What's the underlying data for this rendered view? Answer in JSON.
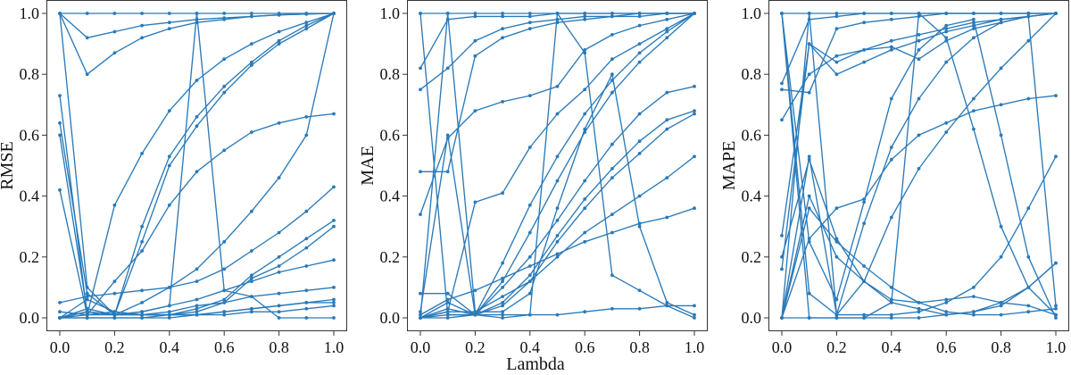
{
  "figure": {
    "shared_xlabel": "Lambda",
    "line_color": "#2a7ab9"
  },
  "chart_data": [
    {
      "type": "line",
      "title": "",
      "xlabel": "",
      "ylabel": "RMSE",
      "xlim": [
        0,
        1
      ],
      "ylim": [
        0,
        1
      ],
      "xticks": [
        0,
        0.2,
        0.4,
        0.6,
        0.8,
        1
      ],
      "xtick_labels": [
        "0.0",
        "0.2",
        "0.4",
        "0.6",
        "0.8",
        "1.0"
      ],
      "yticks": [
        0,
        0.2,
        0.4,
        0.6,
        0.8,
        1
      ],
      "ytick_labels": [
        "0.0",
        "0.2",
        "0.4",
        "0.6",
        "0.8",
        "1.0"
      ],
      "grid": false,
      "x": [
        0,
        0.1,
        0.2,
        0.3,
        0.4,
        0.5,
        0.6,
        0.7,
        0.8,
        0.9,
        1
      ],
      "series": [
        {
          "values": [
            1,
            1,
            1,
            1,
            1,
            1,
            1,
            1,
            1,
            1,
            1
          ]
        },
        {
          "values": [
            1,
            0.8,
            0.87,
            0.92,
            0.95,
            0.97,
            0.98,
            0.99,
            0.995,
            0.998,
            1
          ]
        },
        {
          "values": [
            1,
            0.92,
            0.94,
            0.96,
            0.97,
            0.98,
            0.985,
            0.99,
            0.995,
            0.998,
            1
          ]
        },
        {
          "values": [
            0.73,
            0.01,
            0.37,
            0.54,
            0.68,
            0.78,
            0.85,
            0.9,
            0.94,
            0.97,
            1
          ]
        },
        {
          "values": [
            0.64,
            0.08,
            0.01,
            0.3,
            0.53,
            0.66,
            0.76,
            0.84,
            0.91,
            0.96,
            1
          ]
        },
        {
          "values": [
            0.6,
            0.02,
            0.01,
            0.25,
            0.5,
            0.63,
            0.74,
            0.83,
            0.9,
            0.95,
            1
          ]
        },
        {
          "values": [
            0.42,
            0.01,
            0.12,
            0.22,
            0.37,
            0.48,
            0.55,
            0.61,
            0.64,
            0.66,
            0.67
          ]
        },
        {
          "values": [
            0,
            0.02,
            0.01,
            0.05,
            0.1,
            0.16,
            0.25,
            0.35,
            0.46,
            0.6,
            1
          ]
        },
        {
          "values": [
            0.05,
            0.07,
            0.08,
            0.09,
            0.1,
            0.12,
            0.16,
            0.22,
            0.28,
            0.35,
            0.43
          ]
        },
        {
          "values": [
            0,
            0.03,
            0.01,
            0.01,
            0.01,
            0.03,
            0.06,
            0.14,
            0.2,
            0.26,
            0.32
          ]
        },
        {
          "values": [
            0,
            0.06,
            0.02,
            0.01,
            0.01,
            0.02,
            0.05,
            0.13,
            0.17,
            0.23,
            0.3
          ]
        },
        {
          "values": [
            0.02,
            0.01,
            0.01,
            0.02,
            0.04,
            0.06,
            0.09,
            0.12,
            0.15,
            0.17,
            0.19
          ]
        },
        {
          "values": [
            0,
            0.02,
            0.01,
            0.01,
            0.02,
            0.04,
            0.05,
            0.07,
            0.08,
            0.09,
            0.1
          ]
        },
        {
          "values": [
            0,
            0.01,
            0.02,
            0.01,
            0.01,
            0.01,
            0.02,
            0.03,
            0.04,
            0.05,
            0.06
          ]
        },
        {
          "values": [
            0,
            0,
            0,
            0,
            0.01,
            0.01,
            0.02,
            0.03,
            0.04,
            0.05,
            0.05
          ]
        },
        {
          "values": [
            0,
            0,
            0,
            0,
            0,
            0.01,
            0.01,
            0.02,
            0.02,
            0.03,
            0.04
          ]
        },
        {
          "values": [
            1,
            0.1,
            0.01,
            0.02,
            0.04,
            1,
            0.09,
            0.07,
            0,
            0,
            0
          ]
        }
      ]
    },
    {
      "type": "line",
      "title": "",
      "xlabel": "",
      "ylabel": "MAE",
      "xlim": [
        0,
        1
      ],
      "ylim": [
        0,
        1
      ],
      "xticks": [
        0,
        0.2,
        0.4,
        0.6,
        0.8,
        1
      ],
      "xtick_labels": [
        "0.0",
        "0.2",
        "0.4",
        "0.6",
        "0.8",
        "1.0"
      ],
      "yticks": [
        0,
        0.2,
        0.4,
        0.6,
        0.8,
        1
      ],
      "ytick_labels": [
        "0.0",
        "0.2",
        "0.4",
        "0.6",
        "0.8",
        "1.0"
      ],
      "grid": false,
      "x": [
        0,
        0.1,
        0.2,
        0.3,
        0.4,
        0.5,
        0.6,
        0.7,
        0.8,
        0.9,
        1
      ],
      "series": [
        {
          "values": [
            1,
            1,
            1,
            1,
            1,
            1,
            1,
            1,
            1,
            1,
            1
          ]
        },
        {
          "values": [
            0.82,
            0.98,
            0.99,
            0.99,
            0.99,
            1,
            1,
            1,
            1,
            1,
            1
          ]
        },
        {
          "values": [
            0.75,
            0.82,
            0.91,
            0.95,
            0.97,
            0.98,
            0.99,
            0.99,
            1,
            1,
            1
          ]
        },
        {
          "values": [
            0.48,
            0.48,
            0.86,
            0.92,
            0.95,
            0.97,
            0.98,
            0.99,
            0.99,
            1,
            1
          ]
        },
        {
          "values": [
            0.34,
            0.59,
            0.68,
            0.71,
            0.73,
            0.76,
            0.88,
            0.93,
            0.96,
            0.98,
            1
          ]
        },
        {
          "values": [
            0.08,
            0.08,
            0.01,
            0.18,
            0.37,
            0.53,
            0.67,
            0.78,
            0.87,
            0.94,
            1
          ]
        },
        {
          "values": [
            0.02,
            0.6,
            0.01,
            0.12,
            0.28,
            0.45,
            0.61,
            0.74,
            0.84,
            0.92,
            1
          ]
        },
        {
          "values": [
            0,
            0.02,
            0.38,
            0.41,
            0.56,
            0.67,
            0.75,
            0.85,
            0.9,
            0.95,
            1
          ]
        },
        {
          "values": [
            0,
            0.05,
            0.01,
            0.1,
            0.2,
            0.32,
            0.45,
            0.57,
            0.67,
            0.74,
            0.76
          ]
        },
        {
          "values": [
            0,
            0.03,
            0.01,
            0.05,
            0.14,
            0.27,
            0.39,
            0.49,
            0.58,
            0.65,
            0.68
          ]
        },
        {
          "values": [
            0,
            0.01,
            0.01,
            0.04,
            0.12,
            0.25,
            0.36,
            0.46,
            0.54,
            0.62,
            0.67
          ]
        },
        {
          "values": [
            0,
            0.02,
            0.02,
            0.07,
            0.12,
            0.2,
            0.28,
            0.34,
            0.4,
            0.46,
            0.53
          ]
        },
        {
          "values": [
            0.01,
            0.06,
            0.09,
            0.13,
            0.17,
            0.21,
            0.25,
            0.28,
            0.31,
            0.33,
            0.36
          ]
        },
        {
          "values": [
            0,
            0,
            0.01,
            0,
            0.01,
            0.01,
            0.02,
            0.03,
            0.03,
            0.04,
            0.04
          ]
        },
        {
          "values": [
            1,
            0.01,
            0.01,
            0.01,
            0.01,
            1,
            0.87,
            0.14,
            0.09,
            0.04,
            0
          ]
        },
        {
          "values": [
            0,
            1,
            0.02,
            0.02,
            0.08,
            0.36,
            0.62,
            0.8,
            0.3,
            0.05,
            0.01
          ]
        }
      ]
    },
    {
      "type": "line",
      "title": "",
      "xlabel": "",
      "ylabel": "MAPE",
      "xlim": [
        0,
        1
      ],
      "ylim": [
        0,
        1
      ],
      "xticks": [
        0,
        0.2,
        0.4,
        0.6,
        0.8,
        1
      ],
      "xtick_labels": [
        "0.0",
        "0.2",
        "0.4",
        "0.6",
        "0.8",
        "1.0"
      ],
      "yticks": [
        0,
        0.2,
        0.4,
        0.6,
        0.8,
        1
      ],
      "ytick_labels": [
        "0.0",
        "0.2",
        "0.4",
        "0.6",
        "0.8",
        "1.0"
      ],
      "grid": false,
      "x": [
        0,
        0.1,
        0.2,
        0.3,
        0.4,
        0.5,
        0.6,
        0.7,
        0.8,
        0.9,
        1
      ],
      "series": [
        {
          "values": [
            1,
            1,
            1,
            1,
            1,
            1,
            1,
            1,
            1,
            1,
            1
          ]
        },
        {
          "values": [
            0.77,
            0.98,
            0.99,
            1,
            1,
            1,
            1,
            1,
            1,
            1,
            1
          ]
        },
        {
          "values": [
            0.75,
            0.74,
            0.95,
            0.97,
            0.98,
            0.99,
            1,
            1,
            1,
            1,
            1
          ]
        },
        {
          "values": [
            0.65,
            0.8,
            0.86,
            0.88,
            0.89,
            0.85,
            0.91,
            0.95,
            0.97,
            0.99,
            1
          ]
        },
        {
          "values": [
            0.27,
            0.9,
            0.84,
            0.88,
            0.91,
            0.93,
            0.95,
            0.97,
            0.98,
            0.99,
            1
          ]
        },
        {
          "values": [
            0.16,
            0.9,
            0.8,
            0.84,
            0.88,
            0.91,
            0.94,
            0.96,
            0.98,
            0.99,
            1
          ]
        },
        {
          "values": [
            0,
            0.26,
            0.36,
            0.39,
            0.52,
            0.6,
            0.64,
            0.68,
            0.7,
            0.72,
            0.73
          ]
        },
        {
          "values": [
            0,
            0.53,
            0.01,
            0.12,
            0.33,
            0.49,
            0.61,
            0.72,
            0.82,
            0.91,
            1
          ]
        },
        {
          "values": [
            0.2,
            0.52,
            0.26,
            0.12,
            0.05,
            0.03,
            0.01,
            0.02,
            0.05,
            0.1,
            0.18
          ]
        },
        {
          "values": [
            0,
            0.4,
            0.2,
            0.12,
            0.06,
            0.05,
            0.06,
            0.07,
            0.05,
            0.04,
            0.01
          ]
        },
        {
          "values": [
            0,
            0.36,
            0.25,
            0.17,
            0.1,
            0.05,
            0.02,
            0.01,
            0.01,
            0.02,
            0.03
          ]
        },
        {
          "values": [
            1,
            0.08,
            0.01,
            0.01,
            0.01,
            0.02,
            0.05,
            0.1,
            0.2,
            0.36,
            0.53
          ]
        },
        {
          "values": [
            0,
            0,
            0,
            0,
            0,
            0,
            0.01,
            0.02,
            0.04,
            0.1,
            0.18
          ]
        },
        {
          "values": [
            1,
            0,
            0,
            0,
            0.05,
            1,
            0.92,
            0.62,
            0.3,
            0.1,
            0.01
          ]
        },
        {
          "values": [
            1,
            0.25,
            0.06,
            0.38,
            0.72,
            0.88,
            0.96,
            0.98,
            0.6,
            0.2,
            0
          ]
        },
        {
          "values": [
            0,
            1,
            0.01,
            0.31,
            0.56,
            0.72,
            0.84,
            0.92,
            0.97,
            0.99,
            0.04
          ]
        }
      ]
    }
  ]
}
